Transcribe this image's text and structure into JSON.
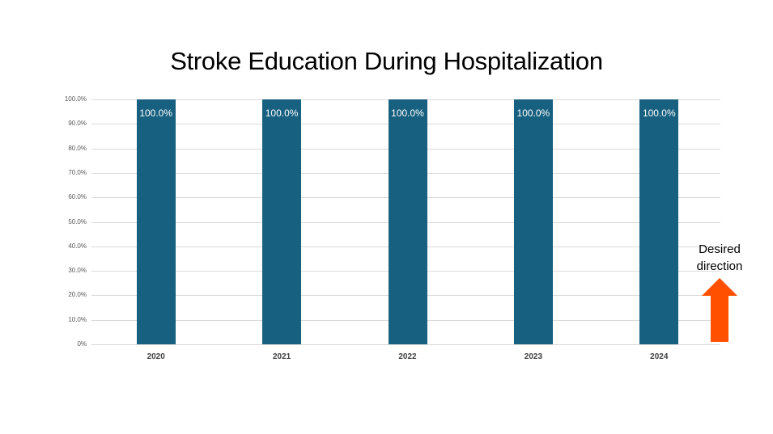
{
  "chart_data": {
    "type": "bar",
    "title": "Stroke Education During Hospitalization",
    "categories": [
      "2020",
      "2021",
      "2022",
      "2023",
      "2024"
    ],
    "values": [
      100.0,
      100.0,
      100.0,
      100.0,
      100.0
    ],
    "data_labels": [
      "100.0%",
      "100.0%",
      "100.0%",
      "100.0%",
      "100.0%"
    ],
    "xlabel": "",
    "ylabel": "",
    "ylim": [
      0,
      100
    ],
    "yticks": [
      "0%",
      "10.0%",
      "20.0%",
      "30.0%",
      "40.0%",
      "50.0%",
      "60.0%",
      "70.0%",
      "80.0%",
      "90.0%",
      "100.0%"
    ],
    "grid": true,
    "bar_color": "#17607f",
    "annotation": {
      "text_line1": "Desired",
      "text_line2": "direction",
      "arrow": "up",
      "arrow_color": "#ff5000"
    }
  }
}
